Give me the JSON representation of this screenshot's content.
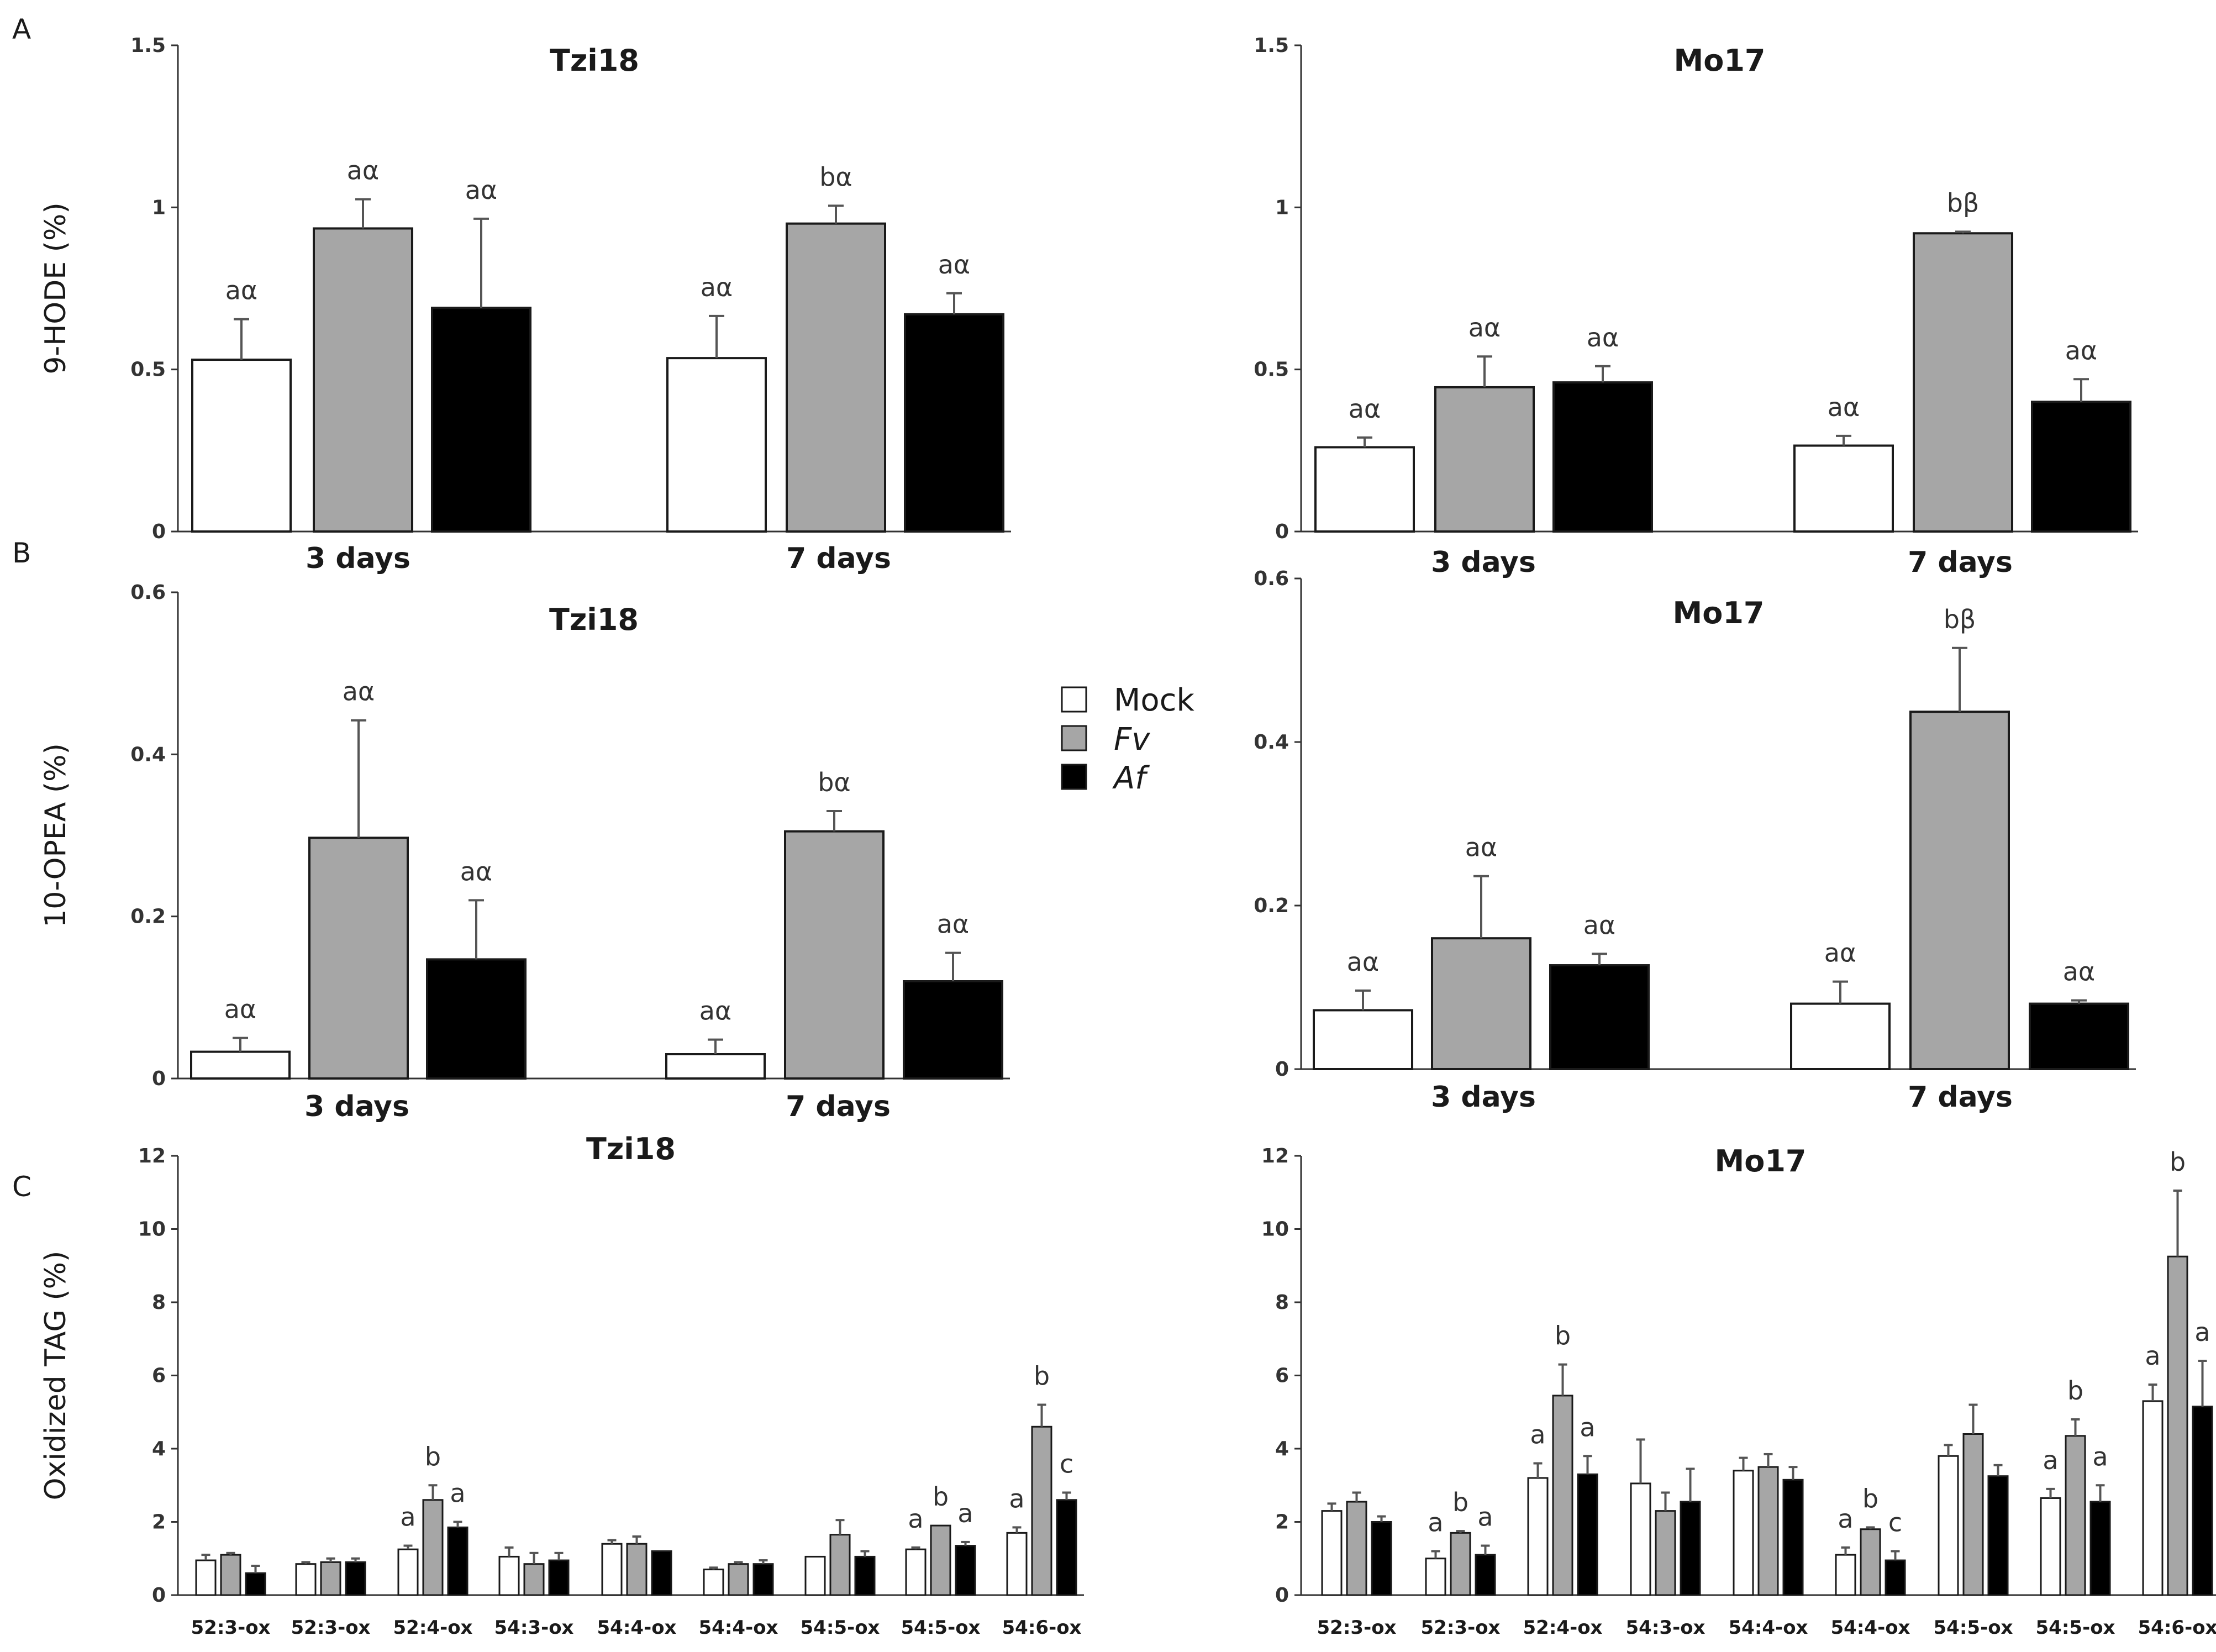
{
  "colors": {
    "Mock": "#ffffff",
    "Fv": "#a6a6a6",
    "Af": "#000000",
    "stroke": "#1a1a1a",
    "axis": "#333333"
  },
  "panel_labels": [
    "A",
    "B",
    "C"
  ],
  "legend": [
    {
      "name": "Mock",
      "italic": false
    },
    {
      "name": "Fv",
      "italic": true
    },
    {
      "name": "Af",
      "italic": true
    }
  ],
  "chart_data": [
    {
      "id": "A-tzi18",
      "type": "bar",
      "title": "Tzi18",
      "ylabel": "9-HODE (%)",
      "ylim": [
        0,
        1.5
      ],
      "yticks": [
        "0",
        "0.5",
        "1",
        "1.5"
      ],
      "categories": [
        "3 days",
        "7 days"
      ],
      "series": [
        {
          "name": "Mock",
          "values": [
            0.53,
            0.535
          ],
          "errors": [
            0.125,
            0.13
          ],
          "labels": [
            "aα",
            "aα"
          ]
        },
        {
          "name": "Fv",
          "values": [
            0.935,
            0.95
          ],
          "errors": [
            0.09,
            0.055
          ],
          "labels": [
            "aα",
            "bα"
          ]
        },
        {
          "name": "Af",
          "values": [
            0.69,
            0.67
          ],
          "errors": [
            0.275,
            0.065
          ],
          "labels": [
            "aα",
            "aα"
          ]
        }
      ]
    },
    {
      "id": "A-mo17",
      "type": "bar",
      "title": "Mo17",
      "ylabel": "",
      "ylim": [
        0,
        1.5
      ],
      "yticks": [
        "0",
        "0.5",
        "1",
        "1.5"
      ],
      "categories": [
        "3 days",
        "7 days"
      ],
      "series": [
        {
          "name": "Mock",
          "values": [
            0.26,
            0.265
          ],
          "errors": [
            0.03,
            0.03
          ],
          "labels": [
            "aα",
            "aα"
          ]
        },
        {
          "name": "Fv",
          "values": [
            0.445,
            0.92
          ],
          "errors": [
            0.095,
            0.005
          ],
          "labels": [
            "aα",
            "bβ"
          ]
        },
        {
          "name": "Af",
          "values": [
            0.46,
            0.4
          ],
          "errors": [
            0.05,
            0.07
          ],
          "labels": [
            "aα",
            "aα"
          ]
        }
      ]
    },
    {
      "id": "B-tzi18",
      "type": "bar",
      "title": "Tzi18",
      "ylabel": "10-OPEA (%)",
      "ylim": [
        0,
        0.6
      ],
      "yticks": [
        "0",
        "0.2",
        "0.4",
        "0.6"
      ],
      "categories": [
        "3 days",
        "7 days"
      ],
      "series": [
        {
          "name": "Mock",
          "values": [
            0.033,
            0.03
          ],
          "errors": [
            0.017,
            0.018
          ],
          "labels": [
            "aα",
            "aα"
          ]
        },
        {
          "name": "Fv",
          "values": [
            0.297,
            0.305
          ],
          "errors": [
            0.145,
            0.025
          ],
          "labels": [
            "aα",
            "bα"
          ]
        },
        {
          "name": "Af",
          "values": [
            0.147,
            0.12
          ],
          "errors": [
            0.073,
            0.035
          ],
          "labels": [
            "aα",
            "aα"
          ]
        }
      ]
    },
    {
      "id": "B-mo17",
      "type": "bar",
      "title": "Mo17",
      "ylabel": "",
      "ylim": [
        0,
        0.6
      ],
      "yticks": [
        "0",
        "0.2",
        "0.4",
        "0.6"
      ],
      "categories": [
        "3 days",
        "7 days"
      ],
      "series": [
        {
          "name": "Mock",
          "values": [
            0.072,
            0.08
          ],
          "errors": [
            0.024,
            0.027
          ],
          "labels": [
            "aα",
            "aα"
          ]
        },
        {
          "name": "Fv",
          "values": [
            0.16,
            0.437
          ],
          "errors": [
            0.076,
            0.078
          ],
          "labels": [
            "aα",
            "bβ"
          ]
        },
        {
          "name": "Af",
          "values": [
            0.127,
            0.08
          ],
          "errors": [
            0.014,
            0.004
          ],
          "labels": [
            "aα",
            "aα"
          ]
        }
      ]
    },
    {
      "id": "C-tzi18",
      "type": "bar",
      "title": "Tzi18",
      "ylabel": "Oxidized TAG (%)",
      "ylim": [
        0,
        12
      ],
      "yticks": [
        "0",
        "2",
        "4",
        "6",
        "8",
        "10",
        "12"
      ],
      "categories": [
        "52:3-ox",
        "52:3-ox",
        "52:4-ox",
        "54:3-ox",
        "54:4-ox",
        "54:4-ox",
        "54:5-ox",
        "54:5-ox",
        "54:6-ox"
      ],
      "series": [
        {
          "name": "Mock",
          "values": [
            0.95,
            0.85,
            1.25,
            1.05,
            1.4,
            0.7,
            1.05,
            1.25,
            1.7
          ],
          "errors": [
            0.15,
            0.05,
            0.1,
            0.25,
            0.1,
            0.05,
            0.0,
            0.05,
            0.15
          ],
          "labels": [
            "",
            "",
            "a",
            "",
            "",
            "",
            "",
            "a",
            "a"
          ]
        },
        {
          "name": "Fv",
          "values": [
            1.1,
            0.9,
            2.6,
            0.85,
            1.4,
            0.85,
            1.65,
            1.9,
            4.6
          ],
          "errors": [
            0.05,
            0.1,
            0.4,
            0.3,
            0.2,
            0.05,
            0.4,
            0.0,
            0.6
          ],
          "labels": [
            "",
            "",
            "b",
            "",
            "",
            "",
            "",
            "b",
            "b"
          ]
        },
        {
          "name": "Af",
          "values": [
            0.6,
            0.9,
            1.85,
            0.95,
            1.2,
            0.85,
            1.05,
            1.35,
            2.6
          ],
          "errors": [
            0.2,
            0.1,
            0.15,
            0.2,
            0.0,
            0.1,
            0.15,
            0.1,
            0.2
          ],
          "labels": [
            "",
            "",
            "a",
            "",
            "",
            "",
            "",
            "a",
            "c"
          ]
        }
      ]
    },
    {
      "id": "C-mo17",
      "type": "bar",
      "title": "Mo17",
      "ylabel": "",
      "ylim": [
        0,
        12
      ],
      "yticks": [
        "0",
        "2",
        "4",
        "6",
        "8",
        "10",
        "12"
      ],
      "categories": [
        "52:3-ox",
        "52:3-ox",
        "52:4-ox",
        "54:3-ox",
        "54:4-ox",
        "54:4-ox",
        "54:5-ox",
        "54:5-ox",
        "54:6-ox"
      ],
      "series": [
        {
          "name": "Mock",
          "values": [
            2.3,
            1.0,
            3.2,
            3.05,
            3.4,
            1.1,
            3.8,
            2.65,
            5.3
          ],
          "errors": [
            0.2,
            0.2,
            0.4,
            1.2,
            0.35,
            0.2,
            0.3,
            0.25,
            0.45
          ],
          "labels": [
            "",
            "a",
            "a",
            "",
            "",
            "a",
            "",
            "a",
            "a"
          ]
        },
        {
          "name": "Fv",
          "values": [
            2.55,
            1.7,
            5.45,
            2.3,
            3.5,
            1.8,
            4.4,
            4.35,
            9.25
          ],
          "errors": [
            0.25,
            0.05,
            0.85,
            0.5,
            0.35,
            0.05,
            0.8,
            0.45,
            1.8
          ],
          "labels": [
            "",
            "b",
            "b",
            "",
            "",
            "b",
            "",
            "b",
            "b"
          ]
        },
        {
          "name": "Af",
          "values": [
            2.0,
            1.1,
            3.3,
            2.55,
            3.15,
            0.95,
            3.25,
            2.55,
            5.15
          ],
          "errors": [
            0.15,
            0.25,
            0.5,
            0.9,
            0.35,
            0.25,
            0.3,
            0.45,
            1.25
          ],
          "labels": [
            "",
            "a",
            "a",
            "",
            "",
            "c",
            "",
            "a",
            "a"
          ]
        }
      ]
    }
  ]
}
